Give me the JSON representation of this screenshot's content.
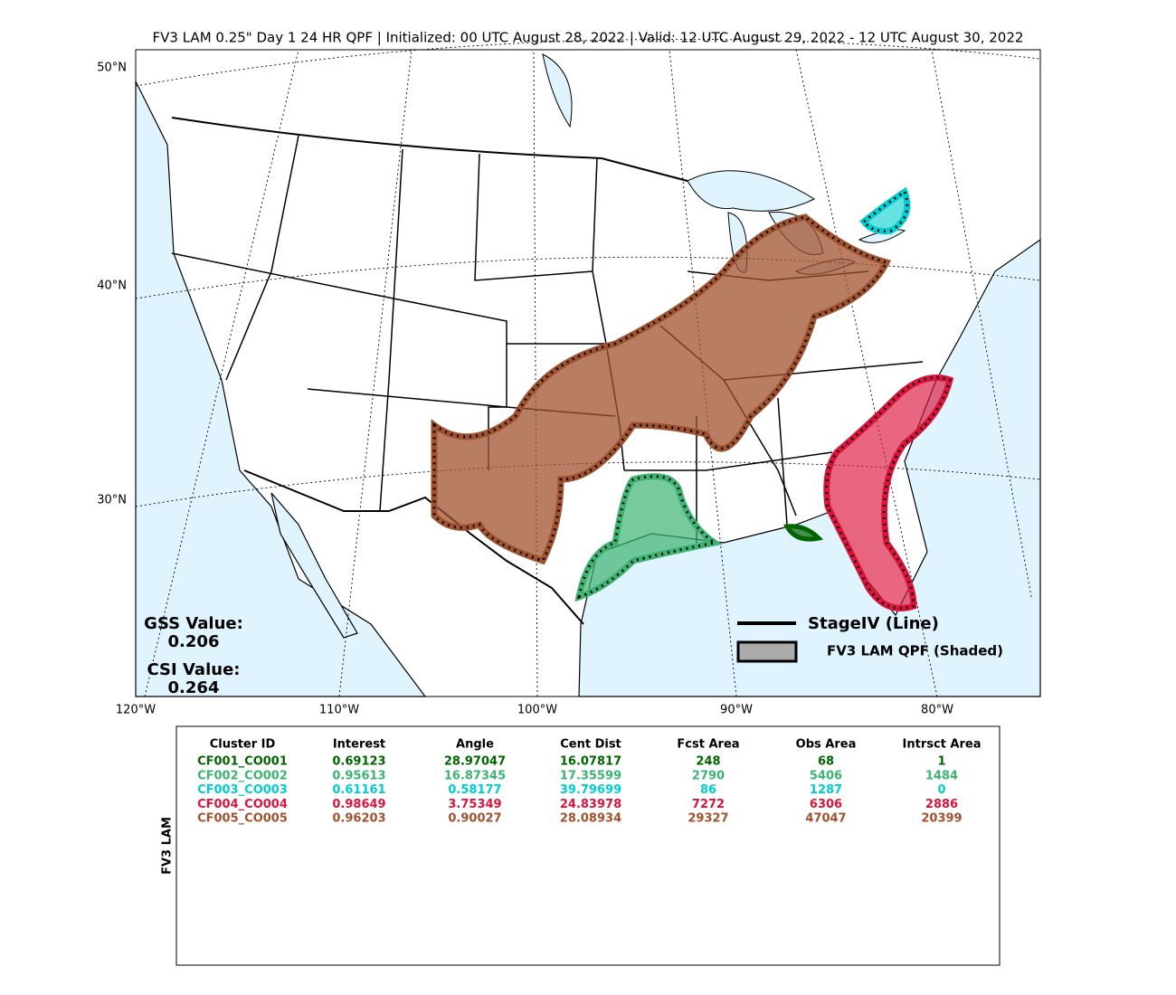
{
  "title": "FV3 LAM 0.25\" Day 1 24 HR QPF | Initialized: 00 UTC August 28, 2022 | Valid: 12 UTC August 29, 2022 - 12 UTC August 30, 2022",
  "map": {
    "lat_labels": [
      "50°N",
      "40°N",
      "30°N"
    ],
    "lon_labels": [
      "120°W",
      "110°W",
      "100°W",
      "90°W",
      "80°W"
    ]
  },
  "scores": {
    "gss_label": "GSS Value:",
    "gss": "0.206",
    "csi_label": "CSI Value:",
    "csi": "0.264"
  },
  "legend": {
    "line": "StageIV (Line)",
    "shaded": "FV3 LAM QPF (Shaded)"
  },
  "table": {
    "side_label": "FV3 LAM",
    "columns": [
      "Cluster ID",
      "Interest",
      "Angle",
      "Cent Dist",
      "Fcst Area",
      "Obs Area",
      "Intrsct Area"
    ],
    "rows": [
      {
        "color": "#006400",
        "cells": [
          "CF001_CO001",
          "0.69123",
          "28.97047",
          "16.07817",
          "248",
          "68",
          "1"
        ]
      },
      {
        "color": "#3cb371",
        "cells": [
          "CF002_CO002",
          "0.95613",
          "16.87345",
          "17.35599",
          "2790",
          "5406",
          "1484"
        ]
      },
      {
        "color": "#00ced1",
        "cells": [
          "CF003_CO003",
          "0.61161",
          "0.58177",
          "39.79699",
          "86",
          "1287",
          "0"
        ]
      },
      {
        "color": "#dc143c",
        "cells": [
          "CF004_CO004",
          "0.98649",
          "3.75349",
          "24.83978",
          "7272",
          "6306",
          "2886"
        ]
      },
      {
        "color": "#a0522d",
        "cells": [
          "CF005_CO005",
          "0.96203",
          "0.90027",
          "28.08934",
          "29327",
          "47047",
          "20399"
        ]
      }
    ]
  }
}
